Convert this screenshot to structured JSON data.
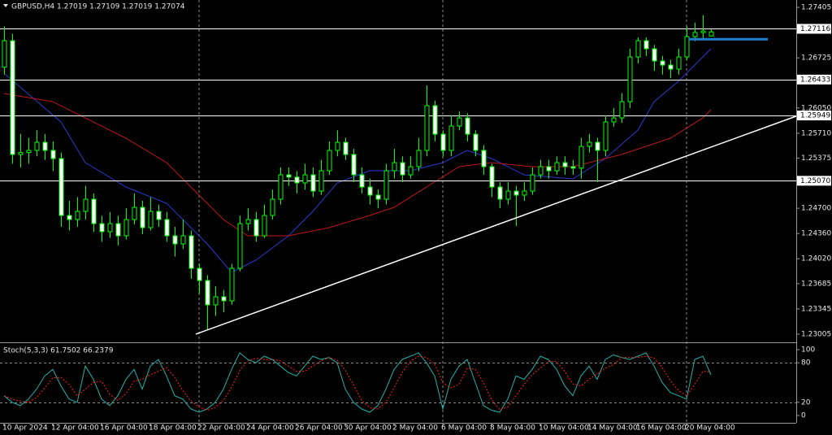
{
  "chart_data": [
    {
      "type": "candlestick",
      "title": "GBPUSD,H4  1.27019 1.27109 1.27019 1.27074",
      "categories": [
        "10 Apr 2024",
        null,
        null,
        null,
        null,
        null,
        "12 Apr 04:00",
        null,
        null,
        null,
        null,
        null,
        "16 Apr 04:00",
        null,
        null,
        null,
        null,
        null,
        "18 Apr 04:00",
        null,
        null,
        null,
        null,
        null,
        "22 Apr 04:00",
        null,
        null,
        null,
        null,
        null,
        "24 Apr 04:00",
        null,
        null,
        null,
        null,
        null,
        "26 Apr 04:00",
        null,
        null,
        null,
        null,
        null,
        "30 Apr 04:00",
        null,
        null,
        null,
        null,
        null,
        "2 May 04:00",
        null,
        null,
        null,
        null,
        null,
        "6 May 04:00",
        null,
        null,
        null,
        null,
        null,
        "8 May 04:00",
        null,
        null,
        null,
        null,
        null,
        "10 May 04:00",
        null,
        null,
        null,
        null,
        null,
        "14 May 04:00",
        null,
        null,
        null,
        null,
        null,
        "16 May 04:00",
        null,
        null,
        null,
        null,
        null,
        "20 May 04:00",
        null,
        null,
        null
      ],
      "open": [
        1.266,
        1.26956,
        1.25424,
        1.2545,
        1.25479,
        1.25588,
        1.25479,
        1.25369,
        1.24603,
        1.24548,
        1.24658,
        1.24822,
        1.24493,
        1.24384,
        1.24493,
        1.24329,
        1.24548,
        1.24712,
        1.24439,
        1.24658,
        1.24548,
        1.24329,
        1.2422,
        1.24329,
        1.23891,
        1.23727,
        1.23399,
        1.23508,
        1.23454,
        1.23891,
        1.24493,
        1.24548,
        1.24329,
        1.24603,
        1.24822,
        1.2515,
        1.2512,
        1.25041,
        1.2515,
        1.24931,
        1.25205,
        1.25479,
        1.25588,
        1.25424,
        1.2515,
        1.24986,
        1.24877,
        1.24822,
        1.25205,
        1.25314,
        1.2515,
        1.2526,
        1.25479,
        1.26081,
        1.25697,
        1.25479,
        1.25807,
        1.25916,
        1.25697,
        1.25479,
        1.2526,
        1.24986,
        1.24822,
        1.24931,
        1.24877,
        1.24931,
        1.2515,
        1.2526,
        1.25205,
        1.25314,
        1.2526,
        1.2524,
        1.25533,
        1.25588,
        1.25479,
        1.25862,
        1.25916,
        1.26135,
        1.26737,
        1.26956,
        1.26847,
        1.26683,
        1.26628,
        1.26573,
        1.26737,
        1.27011,
        1.27066,
        1.27019
      ],
      "high": [
        1.2715,
        1.2705,
        1.257,
        1.2565,
        1.2575,
        1.257,
        1.256,
        1.2545,
        1.248,
        1.2485,
        1.25,
        1.249,
        1.246,
        1.2465,
        1.246,
        1.247,
        1.249,
        1.248,
        1.2485,
        1.2475,
        1.2465,
        1.2445,
        1.2455,
        1.244,
        1.2395,
        1.238,
        1.2365,
        1.236,
        1.2395,
        1.246,
        1.247,
        1.2465,
        1.2475,
        1.2495,
        1.2525,
        1.2525,
        1.252,
        1.253,
        1.2525,
        1.2535,
        1.256,
        1.2575,
        1.2565,
        1.255,
        1.2525,
        1.251,
        1.2495,
        1.253,
        1.255,
        1.254,
        1.254,
        1.2565,
        1.26354,
        1.2615,
        1.2575,
        1.2595,
        1.26,
        1.2598,
        1.2575,
        1.2555,
        1.253,
        1.2505,
        1.2505,
        1.25,
        1.2505,
        1.2525,
        1.2535,
        1.2535,
        1.254,
        1.254,
        1.2535,
        1.2565,
        1.257,
        1.2565,
        1.2595,
        1.2605,
        1.2625,
        1.2685,
        1.27,
        1.27,
        1.269,
        1.2675,
        1.267,
        1.2685,
        1.2715,
        1.272,
        1.273,
        1.27109
      ],
      "low": [
        1.265,
        1.253,
        1.2525,
        1.253,
        1.254,
        1.2535,
        1.252,
        1.2445,
        1.244,
        1.2445,
        1.2455,
        1.2438,
        1.2425,
        1.243,
        1.242,
        1.2428,
        1.2448,
        1.2435,
        1.244,
        1.2445,
        1.2425,
        1.2405,
        1.2415,
        1.2375,
        1.2355,
        1.2306,
        1.2325,
        1.233,
        1.234,
        1.2385,
        1.244,
        1.2425,
        1.243,
        1.2455,
        1.2475,
        1.25,
        1.249,
        1.2495,
        1.2485,
        1.2488,
        1.2515,
        1.254,
        1.2535,
        1.2505,
        1.249,
        1.2475,
        1.247,
        1.2475,
        1.251,
        1.2505,
        1.251,
        1.252,
        1.254,
        1.256,
        1.254,
        1.254,
        1.2575,
        1.256,
        1.254,
        1.2515,
        1.2485,
        1.247,
        1.2475,
        1.2446,
        1.248,
        1.2488,
        1.251,
        1.251,
        1.2515,
        1.2515,
        1.2515,
        1.251,
        1.2545,
        1.2505,
        1.254,
        1.258,
        1.2585,
        1.2605,
        1.2665,
        1.2675,
        1.2655,
        1.265,
        1.2645,
        1.265,
        1.267,
        1.2695,
        1.2698,
        1.27019
      ],
      "close": [
        1.26956,
        1.25424,
        1.2545,
        1.25479,
        1.25588,
        1.25479,
        1.25369,
        1.24603,
        1.24548,
        1.24658,
        1.24822,
        1.24493,
        1.24384,
        1.24493,
        1.24329,
        1.24548,
        1.24712,
        1.24439,
        1.24658,
        1.24548,
        1.24329,
        1.2422,
        1.24329,
        1.23891,
        1.23727,
        1.23399,
        1.23508,
        1.23454,
        1.23891,
        1.24493,
        1.24548,
        1.24329,
        1.24603,
        1.24822,
        1.2515,
        1.2512,
        1.25041,
        1.2515,
        1.24931,
        1.25205,
        1.25479,
        1.25588,
        1.25424,
        1.2515,
        1.24986,
        1.24877,
        1.24822,
        1.25205,
        1.25314,
        1.2515,
        1.2526,
        1.25479,
        1.26081,
        1.25697,
        1.25479,
        1.25807,
        1.25916,
        1.25697,
        1.25479,
        1.2526,
        1.24986,
        1.24822,
        1.24931,
        1.24877,
        1.24931,
        1.2515,
        1.2526,
        1.25205,
        1.25314,
        1.2526,
        1.2524,
        1.25533,
        1.25588,
        1.25479,
        1.25862,
        1.25916,
        1.26135,
        1.26737,
        1.26956,
        1.26847,
        1.26683,
        1.26628,
        1.26573,
        1.26737,
        1.27011,
        1.27066,
        1.27088,
        1.27074
      ],
      "up_color": "#000000",
      "down_color": "#ffffff",
      "wick_color": "#00ff00",
      "xlim": [
        -0.5,
        97.5
      ],
      "ylim": [
        1.22906,
        1.27504
      ],
      "yticks": [
        1.27405,
        1.26725,
        {
          "value": 1.2605,
          "label": "1.26050"
        },
        {
          "value": 1.2571,
          "label": "1.25710"
        },
        1.25375,
        {
          "value": 1.247,
          "label": "1.24700"
        },
        {
          "value": 1.2436,
          "label": "1.24360"
        },
        {
          "value": 1.2402,
          "label": "1.24020"
        },
        1.23685,
        1.23345,
        1.23005
      ],
      "grid": true,
      "overlays": [
        {
          "type": "line",
          "color": "#2a3ad0",
          "x": [
            0,
            7,
            10,
            15,
            20,
            25,
            28,
            31,
            35,
            38,
            41,
            45,
            50,
            54,
            57,
            60,
            64,
            70,
            74,
            78,
            80,
            83,
            86,
            87
          ],
          "values": [
            1.26518,
            1.25862,
            1.25314,
            1.24986,
            1.24767,
            1.2422,
            1.23837,
            1.24001,
            1.24329,
            1.24658,
            1.25041,
            1.25205,
            1.25205,
            1.25314,
            1.25479,
            1.25369,
            1.2515,
            1.25095,
            1.25369,
            1.25752,
            1.26135,
            1.26409,
            1.26737,
            1.26847
          ]
        },
        {
          "type": "line",
          "color": "#c01818",
          "x": [
            0,
            6,
            10,
            15,
            20,
            24,
            27,
            30,
            35,
            40,
            45,
            48,
            52,
            56,
            60,
            65,
            70,
            76,
            82,
            86,
            87
          ],
          "values": [
            1.26245,
            1.26135,
            1.25916,
            1.25643,
            1.25314,
            1.24877,
            1.24548,
            1.24329,
            1.24329,
            1.24439,
            1.24603,
            1.24712,
            1.24986,
            1.2526,
            1.25314,
            1.2526,
            1.2526,
            1.25424,
            1.25643,
            1.25916,
            1.26026
          ]
        }
      ],
      "levels": [
        1.27116,
        1.26433,
        1.25949,
        {
          "value": 1.2507,
          "label": "1.25070"
        }
      ],
      "level_color": "#ffffff",
      "trendline": {
        "x": [
          23.6,
          97.5
        ],
        "values": [
          1.23005,
          1.2594
        ],
        "color": "#ffffff"
      },
      "segment": {
        "x": [
          84.3,
          94
        ],
        "values": [
          1.26976,
          1.26976
        ],
        "color": "#1e7fd0"
      }
    },
    {
      "type": "stochastic",
      "title": "Stoch(5,3,3) 61.7502 66.2379",
      "ylim": [
        -11.1,
        107.4
      ],
      "yticks": [
        100,
        80,
        20,
        0
      ],
      "levels": [
        80,
        20
      ],
      "series": [
        {
          "color": "#20b2aa",
          "values": [
            30,
            20,
            15,
            25,
            40,
            60,
            70,
            45,
            25,
            20,
            75,
            55,
            25,
            15,
            30,
            55,
            70,
            40,
            75,
            85,
            60,
            30,
            25,
            10,
            5,
            10,
            20,
            40,
            70,
            95,
            85,
            80,
            90,
            85,
            75,
            65,
            60,
            75,
            90,
            85,
            88,
            80,
            40,
            20,
            10,
            5,
            15,
            40,
            70,
            85,
            90,
            95,
            80,
            60,
            10,
            55,
            75,
            85,
            50,
            15,
            8,
            5,
            25,
            60,
            55,
            70,
            90,
            85,
            70,
            45,
            30,
            60,
            75,
            55,
            85,
            92,
            88,
            85,
            90,
            95,
            75,
            50,
            35,
            30,
            25,
            85,
            90,
            61.7502
          ]
        },
        {
          "color": "#ff2020",
          "dash": true,
          "values": [
            30,
            25,
            22,
            20,
            27,
            42,
            57,
            58,
            47,
            30,
            40,
            50,
            52,
            32,
            23,
            33,
            52,
            55,
            62,
            67,
            73,
            58,
            38,
            22,
            13,
            8,
            12,
            23,
            43,
            68,
            83,
            87,
            85,
            85,
            83,
            75,
            67,
            67,
            75,
            83,
            88,
            84,
            69,
            47,
            23,
            12,
            10,
            20,
            42,
            65,
            82,
            90,
            88,
            78,
            50,
            42,
            47,
            72,
            70,
            50,
            24,
            9,
            13,
            30,
            47,
            62,
            72,
            82,
            82,
            67,
            48,
            45,
            55,
            63,
            72,
            77,
            88,
            88,
            88,
            90,
            87,
            73,
            53,
            38,
            30,
            47,
            67,
            66.2379
          ]
        }
      ]
    }
  ]
}
